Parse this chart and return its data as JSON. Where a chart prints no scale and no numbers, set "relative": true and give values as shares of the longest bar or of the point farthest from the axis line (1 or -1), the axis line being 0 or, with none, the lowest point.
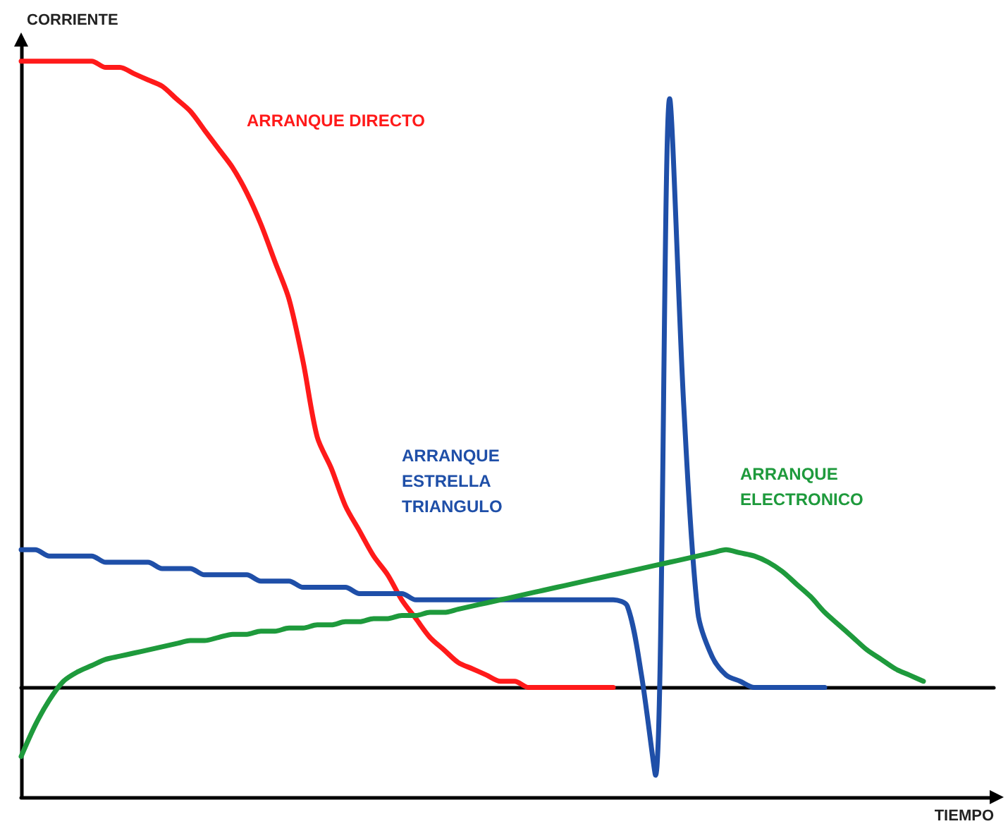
{
  "chart_data": {
    "type": "line",
    "relative": true,
    "xlabel": "TIEMPO",
    "ylabel": "CORRIENTE",
    "legend": false,
    "grid": false,
    "marker": "none",
    "line_style": "solid",
    "categories": [
      null,
      null,
      null,
      null,
      null,
      null,
      null,
      null,
      null,
      null,
      null,
      null,
      null,
      null,
      null,
      null,
      null,
      null,
      null,
      null,
      null,
      null,
      null,
      null,
      null,
      null,
      null,
      null,
      null,
      null,
      null,
      null,
      null,
      null,
      null,
      null,
      null,
      null,
      null,
      null,
      null,
      null,
      null,
      null,
      null,
      null,
      null,
      null,
      null,
      null,
      null,
      null,
      null,
      null,
      null,
      null,
      null,
      null,
      null,
      null,
      null,
      null,
      null,
      null,
      null,
      null,
      null,
      null,
      null,
      null
    ],
    "series": [
      {
        "name": "ARRANQUE DIRECTO",
        "color": "#ff1a1a",
        "values": [
          1.0,
          1.0,
          1.0,
          1.0,
          1.0,
          1.0,
          0.99,
          0.99,
          0.98,
          0.97,
          0.96,
          0.94,
          0.92,
          0.89,
          0.86,
          0.83,
          0.79,
          0.74,
          0.68,
          0.62,
          0.52,
          0.4,
          0.35,
          0.29,
          0.25,
          0.21,
          0.18,
          0.14,
          0.11,
          0.08,
          0.06,
          0.04,
          0.03,
          0.02,
          0.01,
          0.01,
          0.0,
          0.0,
          0.0,
          0.0,
          0.0,
          0.0,
          0.0,
          null,
          null,
          null,
          null,
          null,
          null,
          null,
          null,
          null,
          null,
          null,
          null,
          null,
          null,
          null,
          null,
          null,
          null,
          null,
          null,
          null,
          null,
          null,
          null,
          null,
          null,
          null
        ]
      },
      {
        "name": "ARRANQUE ESTRELLA TRIANGULO",
        "color": "#1f4fa8",
        "values": [
          0.22,
          0.22,
          0.21,
          0.21,
          0.21,
          0.21,
          0.2,
          0.2,
          0.2,
          0.2,
          0.19,
          0.19,
          0.19,
          0.18,
          0.18,
          0.18,
          0.18,
          0.17,
          0.17,
          0.17,
          0.16,
          0.16,
          0.16,
          0.16,
          0.15,
          0.15,
          0.15,
          0.15,
          0.14,
          0.14,
          0.14,
          0.14,
          0.14,
          0.14,
          0.14,
          0.14,
          0.14,
          0.14,
          0.14,
          0.14,
          0.14,
          0.14,
          0.14,
          0.13,
          0.02,
          -0.14,
          0.94,
          0.45,
          0.12,
          0.05,
          0.02,
          0.01,
          0.0,
          0.0,
          0.0,
          0.0,
          0.0,
          0.0,
          null,
          null,
          null,
          null,
          null,
          null,
          null,
          null,
          null,
          null,
          null,
          null
        ]
      },
      {
        "name": "ARRANQUE ELECTRONICO",
        "color": "#1e9a3c",
        "values": [
          -0.11,
          -0.06,
          -0.02,
          0.01,
          0.025,
          0.035,
          0.045,
          0.05,
          0.055,
          0.06,
          0.065,
          0.07,
          0.075,
          0.075,
          0.08,
          0.085,
          0.085,
          0.09,
          0.09,
          0.095,
          0.095,
          0.1,
          0.1,
          0.105,
          0.105,
          0.11,
          0.11,
          0.115,
          0.115,
          0.12,
          0.12,
          0.125,
          0.13,
          0.135,
          0.14,
          0.145,
          0.15,
          0.155,
          0.16,
          0.165,
          0.17,
          0.175,
          0.18,
          0.185,
          0.19,
          0.195,
          0.2,
          0.205,
          0.21,
          0.215,
          0.22,
          0.215,
          0.21,
          0.2,
          0.185,
          0.165,
          0.145,
          0.12,
          0.1,
          0.08,
          0.06,
          0.045,
          0.03,
          0.02,
          0.01,
          null,
          null,
          null,
          null,
          null
        ]
      }
    ]
  }
}
